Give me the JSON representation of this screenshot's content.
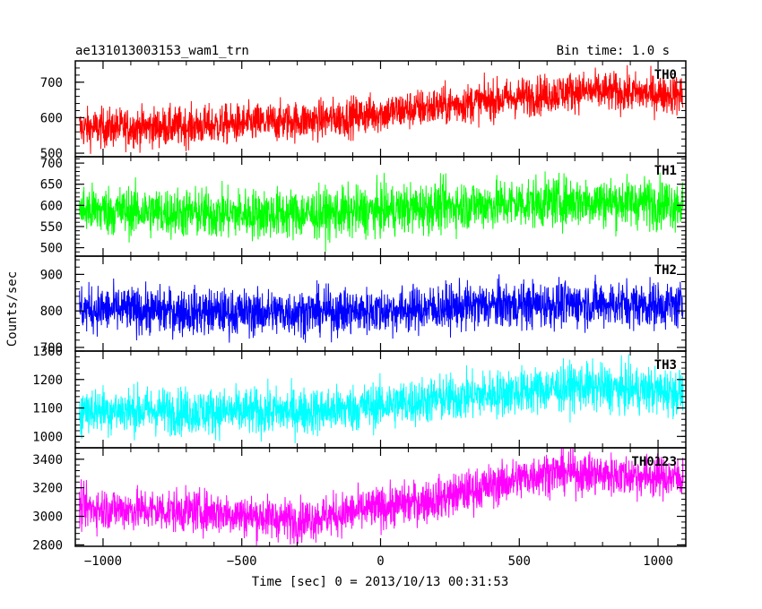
{
  "chart_data": {
    "type": "line",
    "title": "ae131013003153_wam1_trn",
    "bin_time": "Bin time: 1.0 s",
    "ylabel": "Counts/sec",
    "xlabel": "Time [sec] 0 = 2013/10/13 00:31:53",
    "xlim": [
      -1100,
      1100
    ],
    "x_ticks": [
      -1000,
      -500,
      0,
      500,
      1000
    ],
    "x_tick_labels": [
      "−1000",
      "−500",
      "0",
      "500",
      "1000"
    ],
    "grid": false,
    "x_range": [
      -1085,
      1090
    ],
    "series": [
      {
        "name": "TH0",
        "color": "#ff0000",
        "ylim": [
          490,
          760
        ],
        "y_ticks": [
          500,
          600,
          700
        ],
        "trend_x": [
          -1085,
          -700,
          -200,
          300,
          700,
          1090
        ],
        "trend_y": [
          570,
          575,
          595,
          640,
          675,
          665
        ],
        "noise": 28
      },
      {
        "name": "TH1",
        "color": "#00ff00",
        "ylim": [
          480,
          715
        ],
        "y_ticks": [
          500,
          550,
          600,
          650,
          700
        ],
        "trend_x": [
          -1085,
          -600,
          -200,
          300,
          700,
          1090
        ],
        "trend_y": [
          590,
          580,
          580,
          600,
          610,
          605
        ],
        "noise": 30
      },
      {
        "name": "TH2",
        "color": "#0000ff",
        "ylim": [
          690,
          950
        ],
        "y_ticks": [
          700,
          800,
          900
        ],
        "trend_x": [
          -1085,
          -500,
          0,
          400,
          800,
          1090
        ],
        "trend_y": [
          805,
          795,
          800,
          815,
          820,
          815
        ],
        "noise": 32
      },
      {
        "name": "TH3",
        "color": "#00ffff",
        "ylim": [
          960,
          1300
        ],
        "y_ticks": [
          1000,
          1100,
          1200,
          1300
        ],
        "trend_x": [
          -1085,
          -500,
          -200,
          300,
          700,
          1090
        ],
        "trend_y": [
          1095,
          1085,
          1090,
          1140,
          1175,
          1155
        ],
        "noise": 42
      },
      {
        "name": "TH0123",
        "color": "#ff00ff",
        "ylim": [
          2790,
          3480
        ],
        "y_ticks": [
          2800,
          3000,
          3200,
          3400
        ],
        "trend_x": [
          -1085,
          -600,
          -300,
          200,
          600,
          1090
        ],
        "trend_y": [
          3060,
          3030,
          2970,
          3120,
          3310,
          3270
        ],
        "noise": 75
      }
    ]
  }
}
